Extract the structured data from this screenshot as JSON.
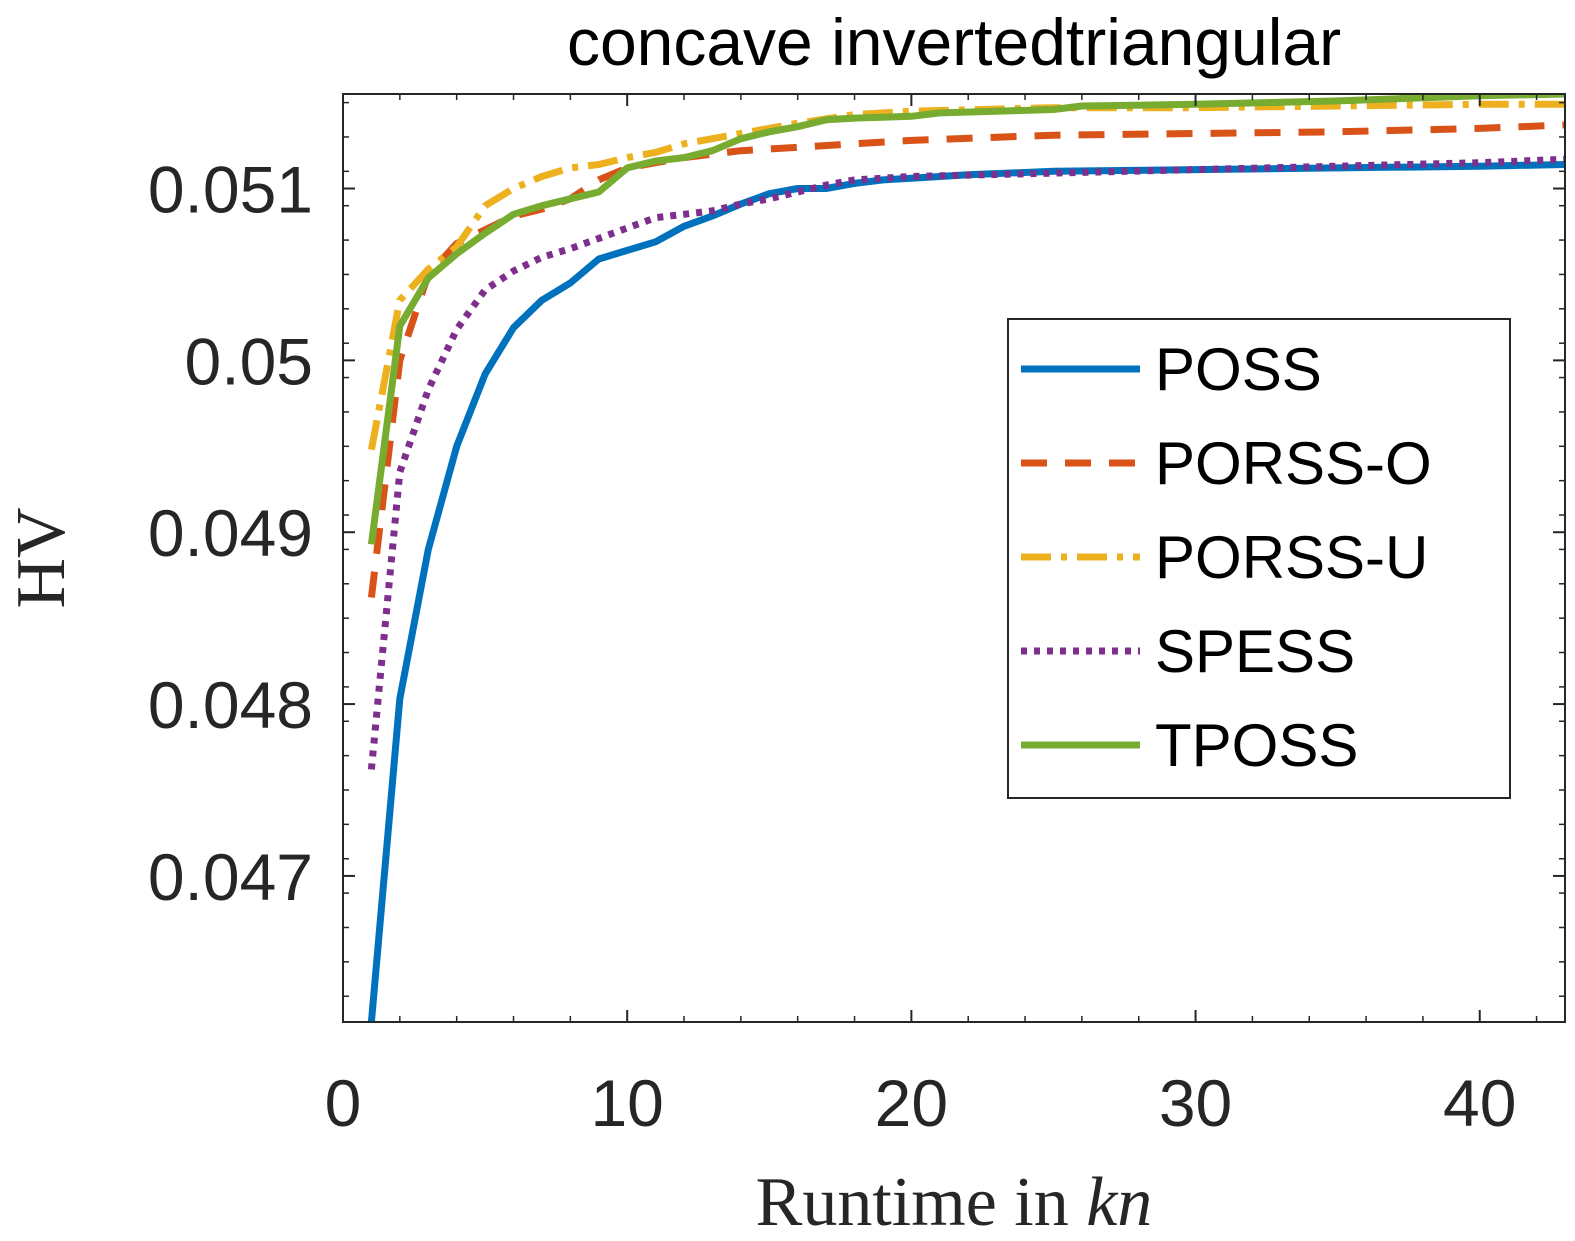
{
  "chart_data": {
    "type": "line",
    "title": "concave invertedtriangular",
    "xlabel": "Runtime in",
    "xlabel_math": "kn",
    "ylabel": "HV",
    "xlim": [
      0,
      43
    ],
    "ylim": [
      0.04615,
      0.05155
    ],
    "xticks": [
      0,
      10,
      20,
      30,
      40
    ],
    "xtick_labels": [
      "0",
      "10",
      "20",
      "30",
      "40"
    ],
    "yticks": [
      0.047,
      0.048,
      0.049,
      0.05,
      0.051
    ],
    "ytick_labels": [
      "0.047",
      "0.048",
      "0.049",
      "0.05",
      "0.051"
    ],
    "grid": false,
    "legend_position": "right",
    "series": [
      {
        "name": "POSS",
        "color": "#0072BD",
        "style": "solid",
        "x": [
          1,
          2,
          3,
          4,
          5,
          6,
          7,
          8,
          9,
          10,
          11,
          12,
          13,
          14,
          15,
          16,
          17,
          18,
          19,
          20,
          22,
          25,
          30,
          35,
          40,
          43
        ],
        "y": [
          0.04615,
          0.04803,
          0.0489,
          0.0495,
          0.04992,
          0.05019,
          0.05035,
          0.05045,
          0.05059,
          0.05064,
          0.05069,
          0.05078,
          0.05084,
          0.05091,
          0.05097,
          0.051,
          0.051,
          0.05103,
          0.05105,
          0.05106,
          0.05108,
          0.0511,
          0.05111,
          0.05112,
          0.05113,
          0.05114
        ]
      },
      {
        "name": "PORSS-O",
        "color": "#D95319",
        "style": "dashed",
        "x": [
          1,
          2,
          3,
          4,
          5,
          6,
          7,
          8,
          9,
          10,
          11,
          12,
          14,
          16,
          18,
          20,
          25,
          30,
          35,
          40,
          43
        ],
        "y": [
          0.04862,
          0.05,
          0.0505,
          0.05068,
          0.05076,
          0.05084,
          0.05088,
          0.05094,
          0.05105,
          0.05112,
          0.05115,
          0.05118,
          0.05122,
          0.05124,
          0.05126,
          0.05128,
          0.05131,
          0.05132,
          0.05133,
          0.05135,
          0.05137
        ]
      },
      {
        "name": "PORSS-U",
        "color": "#EDB120",
        "style": "dashdot",
        "x": [
          1,
          2,
          3,
          4,
          5,
          6,
          7,
          8,
          9,
          10,
          11,
          12,
          14,
          16,
          18,
          20,
          25,
          30,
          35,
          40,
          43
        ],
        "y": [
          0.04948,
          0.05035,
          0.05053,
          0.05066,
          0.0509,
          0.051,
          0.05107,
          0.05112,
          0.05114,
          0.05118,
          0.05121,
          0.05126,
          0.05132,
          0.05138,
          0.05143,
          0.05145,
          0.05147,
          0.05147,
          0.05148,
          0.05149,
          0.05149
        ]
      },
      {
        "name": "SPESS",
        "color": "#7E2F8E",
        "style": "dotted",
        "x": [
          1,
          2,
          3,
          4,
          5,
          6,
          7,
          8,
          9,
          10,
          11,
          12,
          13,
          14,
          15,
          16,
          17,
          18,
          20,
          25,
          30,
          35,
          40,
          43
        ],
        "y": [
          0.04762,
          0.04935,
          0.04983,
          0.05018,
          0.05041,
          0.05052,
          0.0506,
          0.05065,
          0.05071,
          0.05077,
          0.05083,
          0.05085,
          0.05087,
          0.05091,
          0.05094,
          0.05098,
          0.05102,
          0.05105,
          0.05107,
          0.05109,
          0.05111,
          0.05113,
          0.05115,
          0.05117
        ]
      },
      {
        "name": "TPOSS",
        "color": "#77AC30",
        "style": "solid",
        "x": [
          1,
          2,
          3,
          4,
          5,
          6,
          7,
          8,
          9,
          10,
          11,
          12,
          13,
          14,
          15,
          16,
          17,
          18,
          20,
          21,
          25,
          26,
          30,
          35,
          40,
          43
        ],
        "y": [
          0.04893,
          0.0502,
          0.05048,
          0.05062,
          0.05074,
          0.05085,
          0.0509,
          0.05094,
          0.05098,
          0.05112,
          0.05116,
          0.05118,
          0.05122,
          0.05129,
          0.05133,
          0.05136,
          0.0514,
          0.05141,
          0.05142,
          0.05144,
          0.05146,
          0.05148,
          0.05149,
          0.05151,
          0.05154,
          0.05155
        ]
      }
    ]
  }
}
